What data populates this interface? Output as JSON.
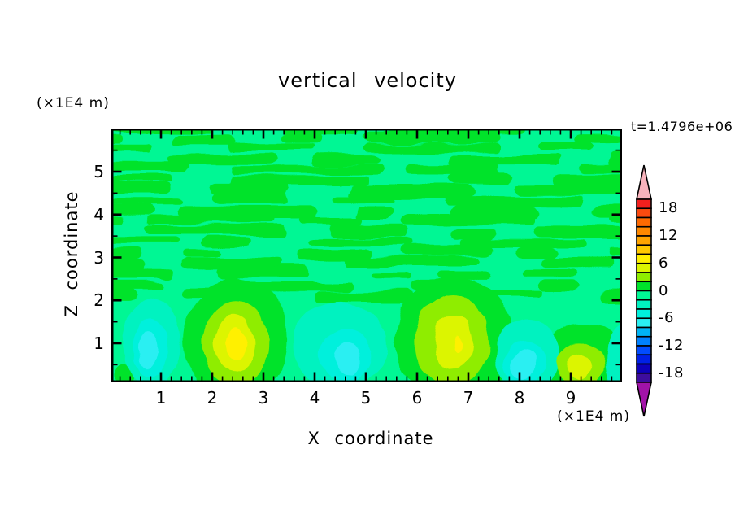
{
  "labels": {
    "title": "vertical velocity",
    "time": "t=1.4796e+06",
    "y_unit": "(×1E4 m)",
    "x_unit": "(×1E4 m)",
    "xlabel": "X coordinate",
    "ylabel": "Z coordinate"
  },
  "chart_data": {
    "type": "filled_contour",
    "title": "vertical velocity",
    "xlabel": "X coordinate",
    "ylabel": "Z coordinate",
    "x_unit": "(×1E4 m)",
    "y_unit": "(×1E4 m)",
    "time_annotation": "t=1.4796e+06",
    "x_range": [
      0,
      10
    ],
    "y_range": [
      0,
      6
    ],
    "x_ticks": [
      1,
      2,
      3,
      4,
      5,
      6,
      7,
      8,
      9
    ],
    "x_minor_step": 0.2,
    "y_ticks": [
      1,
      2,
      3,
      4,
      5
    ],
    "y_minor_step": 0.5,
    "grid": false,
    "contour_interval": 2,
    "value_range": [
      -20,
      20
    ],
    "palette_top_to_bottom": [
      "#F2201E",
      "#FB4A0F",
      "#FD6A02",
      "#FE8800",
      "#FFA400",
      "#FFC800",
      "#FFF000",
      "#DCF500",
      "#8FED00",
      "#00E32B",
      "#00F794",
      "#00F2C0",
      "#00F0DC",
      "#2AEFF2",
      "#00B4F5",
      "#0081FF",
      "#014CFF",
      "#0020E6",
      "#0D00BB",
      "#3D0D9E"
    ],
    "over_arrow_color": "#F8B3BC",
    "under_arrow_color": "#A213A8",
    "colorbar_labels": [
      {
        "text": "18",
        "boundary_index": 1
      },
      {
        "text": "12",
        "boundary_index": 4
      },
      {
        "text": "6",
        "boundary_index": 7
      },
      {
        "text": "0",
        "boundary_index": 10
      },
      {
        "text": "-6",
        "boundary_index": 13
      },
      {
        "text": "-12",
        "boundary_index": 16
      },
      {
        "text": "-18",
        "boundary_index": 19
      }
    ],
    "background_band": 10,
    "streak_band": 9,
    "field_features": {
      "description": "weak alternating w=0±2 horizontal wavy streaks above z≈2; convective updraft/downdraft cells below z≈2",
      "updraft_maxima_x": [
        2.5,
        6.7,
        9.2
      ],
      "downdraft_minima_x": [
        0.8,
        4.5,
        8.1
      ],
      "blobs": [
        {
          "x": 2.45,
          "y": 1.1,
          "rx": 1.02,
          "ry": 1.42,
          "band": 9
        },
        {
          "x": 6.72,
          "y": 1.1,
          "rx": 1.15,
          "ry": 1.5,
          "band": 9
        },
        {
          "x": 9.25,
          "y": 0.6,
          "rx": 0.78,
          "ry": 0.85,
          "band": 9
        },
        {
          "x": 0.28,
          "y": 0.25,
          "rx": 0.2,
          "ry": 0.24,
          "band": 9
        },
        {
          "x": 2.45,
          "y": 1.0,
          "rx": 0.65,
          "ry": 1.0,
          "band": 8
        },
        {
          "x": 6.68,
          "y": 1.05,
          "rx": 0.73,
          "ry": 1.06,
          "band": 8
        },
        {
          "x": 9.2,
          "y": 0.5,
          "rx": 0.48,
          "ry": 0.55,
          "band": 8
        },
        {
          "x": 2.44,
          "y": 1.0,
          "rx": 0.4,
          "ry": 0.63,
          "band": 7
        },
        {
          "x": 6.7,
          "y": 1.0,
          "rx": 0.37,
          "ry": 0.66,
          "band": 7
        },
        {
          "x": 9.17,
          "y": 0.45,
          "rx": 0.24,
          "ry": 0.3,
          "band": 7
        },
        {
          "x": 2.48,
          "y": 1.0,
          "rx": 0.2,
          "ry": 0.36,
          "band": 6
        },
        {
          "x": 6.78,
          "y": 0.95,
          "rx": 0.07,
          "ry": 0.2,
          "band": 6
        },
        {
          "x": 0.82,
          "y": 1.0,
          "rx": 0.56,
          "ry": 1.02,
          "band": 11
        },
        {
          "x": 4.5,
          "y": 0.95,
          "rx": 0.92,
          "ry": 1.0,
          "band": 11
        },
        {
          "x": 8.15,
          "y": 0.7,
          "rx": 0.62,
          "ry": 0.88,
          "band": 11
        },
        {
          "x": 9.95,
          "y": 0.6,
          "rx": 0.25,
          "ry": 0.8,
          "band": 11
        },
        {
          "x": 0.8,
          "y": 0.9,
          "rx": 0.34,
          "ry": 0.7,
          "band": 12
        },
        {
          "x": 4.6,
          "y": 0.72,
          "rx": 0.5,
          "ry": 0.6,
          "band": 12
        },
        {
          "x": 8.1,
          "y": 0.55,
          "rx": 0.4,
          "ry": 0.52,
          "band": 12
        },
        {
          "x": 0.75,
          "y": 0.85,
          "rx": 0.18,
          "ry": 0.46,
          "band": 13
        },
        {
          "x": 4.65,
          "y": 0.62,
          "rx": 0.25,
          "ry": 0.36,
          "band": 13
        },
        {
          "x": 8.08,
          "y": 0.5,
          "rx": 0.23,
          "ry": 0.36,
          "band": 13
        }
      ]
    }
  }
}
